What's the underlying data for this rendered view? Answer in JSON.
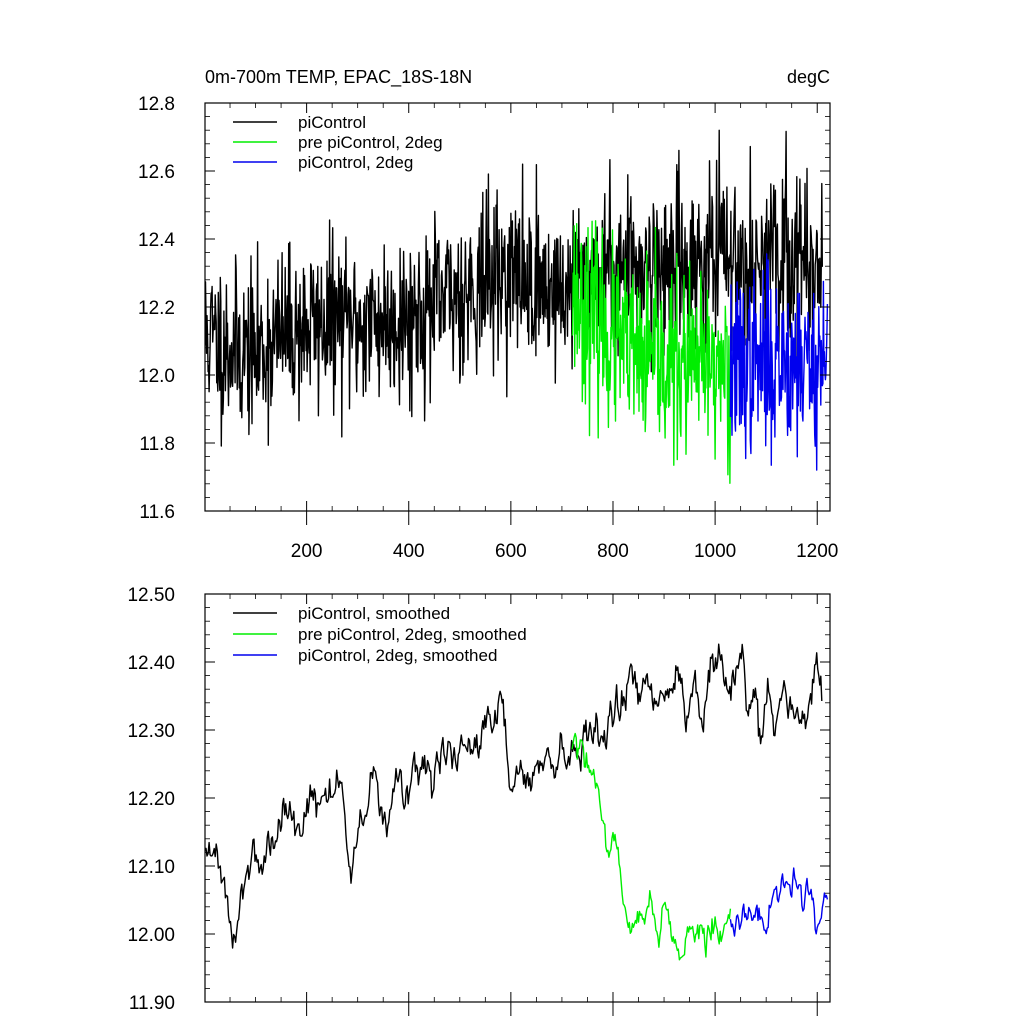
{
  "chart_data": [
    {
      "type": "line",
      "title": "0m-700m TEMP, EPAC_18S-18N",
      "units": "degC",
      "xlabel": "",
      "ylabel": "",
      "xlim": [
        1,
        1225
      ],
      "ylim": [
        11.6,
        12.8
      ],
      "xticks": [
        200,
        400,
        600,
        800,
        1000,
        1200
      ],
      "xtick_labels": [
        "200",
        "400",
        "600",
        "800",
        "1000",
        "1200"
      ],
      "yticks": [
        11.6,
        11.8,
        12.0,
        12.2,
        12.4,
        12.6,
        12.8
      ],
      "ytick_labels": [
        "11.6",
        "11.8",
        "12.0",
        "12.2",
        "12.4",
        "12.6",
        "12.8"
      ],
      "grid": false,
      "legend_position": "top-left",
      "series": [
        {
          "name": "piControl",
          "color": "#000000",
          "x": [
            1,
            50,
            100,
            150,
            200,
            250,
            300,
            350,
            400,
            450,
            500,
            550,
            600,
            650,
            700,
            750,
            800,
            850,
            900,
            950,
            1000,
            1050,
            1100,
            1150,
            1200,
            1210
          ],
          "y": [
            12.12,
            12.08,
            12.06,
            12.12,
            12.14,
            12.16,
            12.15,
            12.16,
            12.17,
            12.2,
            12.24,
            12.28,
            12.3,
            12.27,
            12.24,
            12.3,
            12.32,
            12.33,
            12.32,
            12.33,
            12.35,
            12.34,
            12.33,
            12.35,
            12.33,
            12.34
          ]
        },
        {
          "name": "pre piControl, 2deg",
          "color": "#00ee00",
          "x": [
            720,
            750,
            800,
            850,
            900,
            950,
            1000,
            1030
          ],
          "y": [
            12.26,
            12.18,
            12.1,
            12.04,
            12.03,
            12.02,
            12.02,
            12.03
          ]
        },
        {
          "name": "piControl, 2deg",
          "color": "#0000ee",
          "x": [
            1030,
            1060,
            1100,
            1150,
            1200,
            1220
          ],
          "y": [
            12.02,
            12.03,
            12.04,
            12.05,
            12.03,
            12.06
          ]
        }
      ]
    },
    {
      "type": "line",
      "title": "",
      "xlabel": "",
      "ylabel": "",
      "xlim": [
        1,
        1225
      ],
      "ylim": [
        11.9,
        12.5
      ],
      "xticks": [
        200,
        400,
        600,
        800,
        1000,
        1200
      ],
      "yticks": [
        11.9,
        12.0,
        12.1,
        12.2,
        12.3,
        12.4,
        12.5
      ],
      "ytick_labels": [
        "11.90",
        "12.00",
        "12.10",
        "12.20",
        "12.30",
        "12.40",
        "12.50"
      ],
      "grid": false,
      "legend_position": "top-left",
      "series": [
        {
          "name": "piControl, smoothed",
          "color": "#000000",
          "x": [
            1,
            20,
            40,
            60,
            80,
            100,
            120,
            150,
            200,
            250,
            300,
            350,
            400,
            450,
            500,
            550,
            600,
            650,
            700,
            720,
            750,
            800,
            850,
            900,
            950,
            1000,
            1050,
            1100,
            1150,
            1200,
            1210
          ],
          "y": [
            12.2,
            12.1,
            12.05,
            12.04,
            12.06,
            12.08,
            12.1,
            12.13,
            12.17,
            12.2,
            12.19,
            12.18,
            12.21,
            12.24,
            12.27,
            12.3,
            12.27,
            12.25,
            12.22,
            12.24,
            12.31,
            12.33,
            12.35,
            12.34,
            12.35,
            12.37,
            12.36,
            12.34,
            12.36,
            12.34,
            12.4
          ]
        },
        {
          "name": "pre piControl, 2deg, smoothed",
          "color": "#00ee00",
          "x": [
            720,
            740,
            760,
            780,
            800,
            820,
            850,
            900,
            950,
            1000,
            1030
          ],
          "y": [
            12.26,
            12.24,
            12.2,
            12.15,
            12.1,
            12.07,
            12.04,
            12.02,
            12.01,
            12.01,
            12.02
          ]
        },
        {
          "name": "piControl, 2deg, smoothed",
          "color": "#0000ee",
          "x": [
            1030,
            1060,
            1100,
            1150,
            1200,
            1220
          ],
          "y": [
            12.01,
            12.03,
            12.04,
            12.06,
            12.03,
            12.08
          ]
        }
      ]
    }
  ]
}
